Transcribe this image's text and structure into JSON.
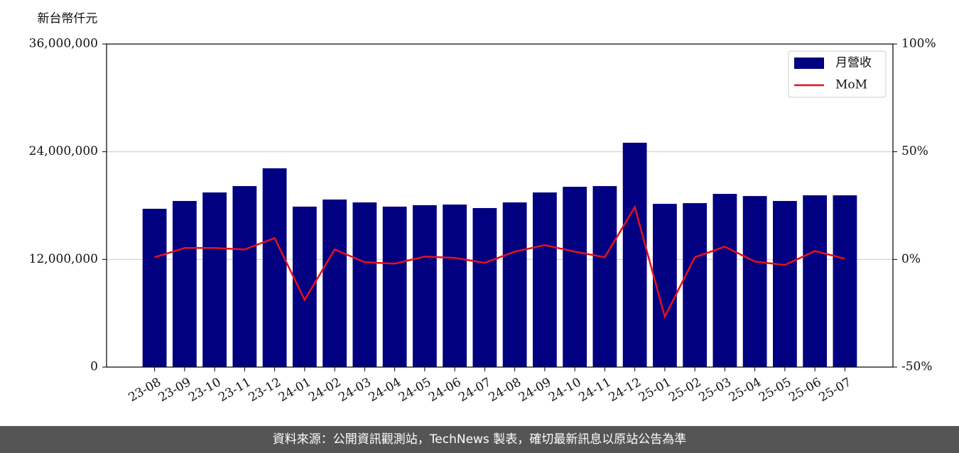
{
  "chart_data": {
    "type": "bar",
    "y_label": "新台幣仟元",
    "footer": "資料來源：公開資訊觀測站，TechNews 製表，確切最新訊息以原站公告為準",
    "categories": [
      "23-08",
      "23-09",
      "23-10",
      "23-11",
      "23-12",
      "24-01",
      "24-02",
      "24-03",
      "24-04",
      "24-05",
      "24-06",
      "24-07",
      "24-08",
      "24-09",
      "24-10",
      "24-11",
      "24-12",
      "25-01",
      "25-02",
      "25-03",
      "25-04",
      "25-05",
      "25-06",
      "25-07"
    ],
    "series": [
      {
        "name": "月營收",
        "type": "bar",
        "axis": "y",
        "color": "#000080",
        "values": [
          17640000,
          18510000,
          19460000,
          20170000,
          22150000,
          17880000,
          18670000,
          18350000,
          17880000,
          18040000,
          18110000,
          17720000,
          18350000,
          19460000,
          20090000,
          20170000,
          25000000,
          18190000,
          18270000,
          19300000,
          19060000,
          18510000,
          19140000,
          19140000
        ]
      },
      {
        "name": "MoM",
        "type": "line",
        "axis": "y2",
        "color": "#e8101a",
        "values": [
          1.0,
          5.3,
          5.3,
          4.6,
          9.9,
          -18.8,
          4.6,
          -1.3,
          -2.0,
          1.3,
          0.7,
          -1.6,
          3.6,
          6.6,
          3.6,
          1.0,
          24.3,
          -26.6,
          1.0,
          5.9,
          -1.0,
          -2.6,
          3.9,
          0.3
        ]
      }
    ],
    "ylim": [
      0,
      36000000
    ],
    "yticks": [
      0,
      {
        "value": 12000000,
        "label": "12,000,000"
      },
      {
        "value": 24000000,
        "label": "24,000,000"
      },
      {
        "value": 36000000,
        "label": "36,000,000"
      }
    ],
    "y2lim": [
      -50,
      100
    ],
    "y2ticks": [
      {
        "value": -50,
        "label": "-50%"
      },
      {
        "value": 0,
        "label": "0%"
      },
      {
        "value": 50,
        "label": "50%"
      },
      {
        "value": 100,
        "label": "100%"
      }
    ],
    "grid": true,
    "legend": "upper right"
  }
}
